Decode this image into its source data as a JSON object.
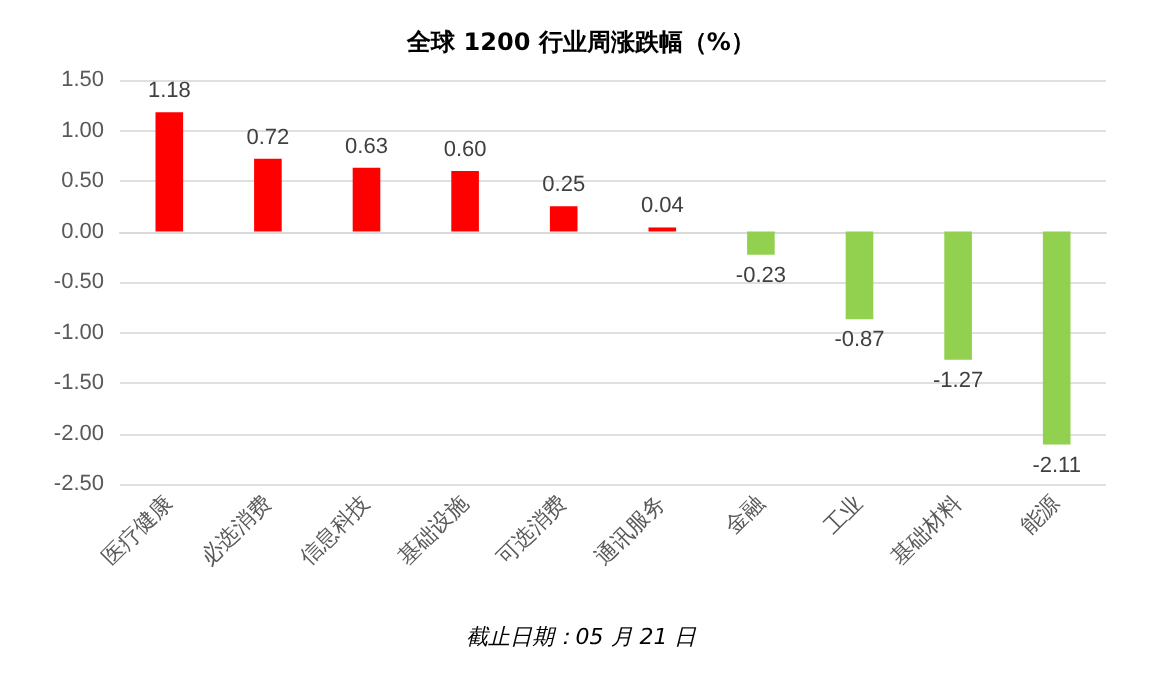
{
  "chart_data": {
    "type": "bar",
    "title": "全球 1200 行业周涨跌幅（%）",
    "categories": [
      "医疗健康",
      "必选消费",
      "信息科技",
      "基础设施",
      "可选消费",
      "通讯服务",
      "金融",
      "工业",
      "基础材料",
      "能源"
    ],
    "values": [
      1.18,
      0.72,
      0.63,
      0.6,
      0.25,
      0.04,
      -0.23,
      -0.87,
      -1.27,
      -2.11
    ],
    "value_labels": [
      "1.18",
      "0.72",
      "0.63",
      "0.60",
      "0.25",
      "0.04",
      "-0.23",
      "-0.87",
      "-1.27",
      "-2.11"
    ],
    "colors": [
      "#ff0000",
      "#ff0000",
      "#ff0000",
      "#ff0000",
      "#ff0000",
      "#ff0000",
      "#92d050",
      "#92d050",
      "#92d050",
      "#92d050"
    ],
    "ylim": [
      -2.5,
      1.5
    ],
    "yticks": [
      {
        "value": -2.5,
        "label": "-2.50"
      },
      {
        "value": -2,
        "label": "-2.00"
      },
      {
        "value": -1.5,
        "label": "-1.50"
      },
      {
        "value": -1,
        "label": "-1.00"
      },
      {
        "value": -0.5,
        "label": "-0.50"
      },
      {
        "value": 0,
        "label": "0.00"
      },
      {
        "value": 0.5,
        "label": "0.50"
      },
      {
        "value": 1,
        "label": "1.00"
      },
      {
        "value": 1.5,
        "label": "1.50"
      }
    ],
    "grid": "y",
    "annotations": [
      "截止日期：05 月 21 日"
    ]
  }
}
